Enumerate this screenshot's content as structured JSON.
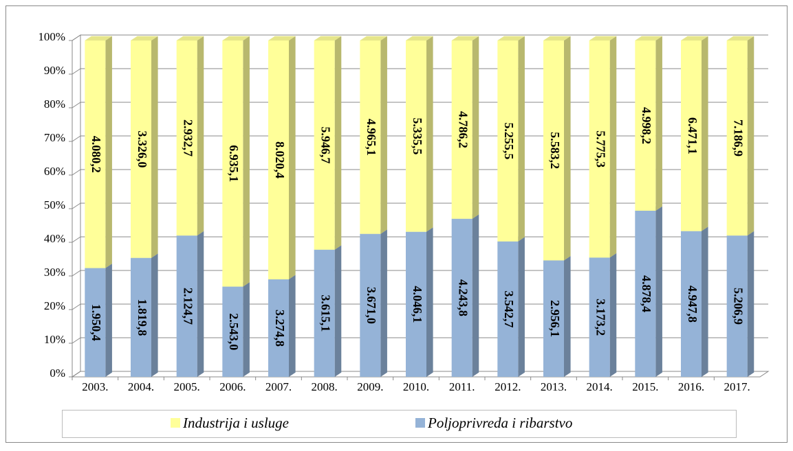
{
  "chart_data": {
    "type": "bar",
    "stacking": "percent",
    "categories": [
      "2003.",
      "2004.",
      "2005.",
      "2006.",
      "2007.",
      "2008.",
      "2009.",
      "2010.",
      "2011.",
      "2012.",
      "2013.",
      "2014.",
      "2015.",
      "2016.",
      "2017."
    ],
    "series": [
      {
        "name": "Industrija i usluge",
        "color": "#ffff99",
        "values": [
          4080.2,
          3326.0,
          2932.7,
          6935.1,
          8020.4,
          5946.7,
          4965.1,
          5335.5,
          4786.2,
          5255.5,
          5583.2,
          5775.3,
          4998.2,
          6471.1,
          7186.9
        ],
        "value_labels": [
          "4.080,2",
          "3.326,0",
          "2.932,7",
          "6.935,1",
          "8.020,4",
          "5.946,7",
          "4.965,1",
          "5.335,5",
          "4.786,2",
          "5.255,5",
          "5.583,2",
          "5.775,3",
          "4.998,2",
          "6.471,1",
          "7.186,9"
        ]
      },
      {
        "name": "Poljoprivreda i ribarstvo",
        "color": "#95b3d7",
        "values": [
          1950.4,
          1819.8,
          2124.7,
          2543.0,
          3274.8,
          3615.1,
          3671.0,
          4046.1,
          4243.8,
          3542.7,
          2956.1,
          3173.2,
          4878.4,
          4947.8,
          5206.9
        ],
        "value_labels": [
          "1.950,4",
          "1.819,8",
          "2.124,7",
          "2.543,0",
          "3.274,8",
          "3.615,1",
          "3.671,0",
          "4.046,1",
          "4.243,8",
          "3.542,7",
          "2.956,1",
          "3.173,2",
          "4.878,4",
          "4.947,8",
          "5.206,9"
        ]
      }
    ],
    "ylim": [
      0,
      100
    ],
    "yticks": [
      {
        "value": 0,
        "label": "0%"
      },
      {
        "value": 10,
        "label": "10%"
      },
      {
        "value": 20,
        "label": "20%"
      },
      {
        "value": 30,
        "label": "30%"
      },
      {
        "value": 40,
        "label": "40%"
      },
      {
        "value": 50,
        "label": "50%"
      },
      {
        "value": 60,
        "label": "60%"
      },
      {
        "value": 70,
        "label": "70%"
      },
      {
        "value": 80,
        "label": "80%"
      },
      {
        "value": 90,
        "label": "90%"
      },
      {
        "value": 100,
        "label": "100%"
      }
    ],
    "grid": true,
    "legend": "bottom"
  }
}
